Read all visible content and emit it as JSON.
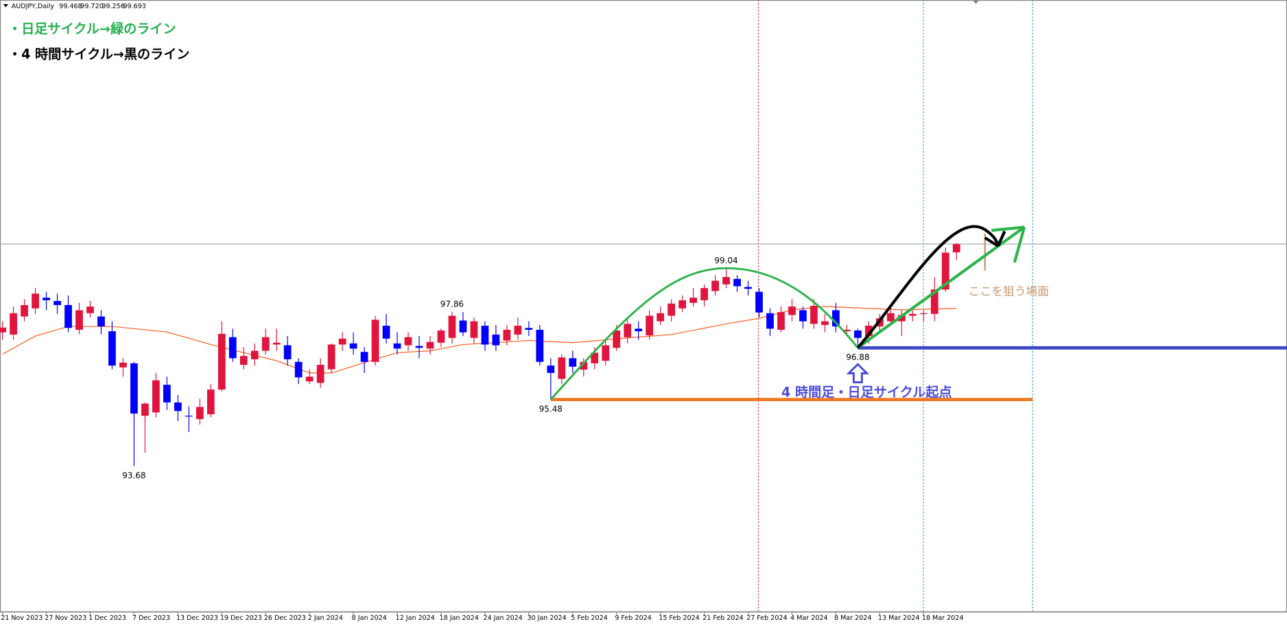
{
  "chart_data": {
    "type": "candlestick",
    "symbol": "AUDJPY,Daily",
    "quote": [
      99.468,
      {
        "value": 99.72,
        "label": "99.720"
      },
      99.256,
      99.693
    ],
    "notes": [
      "・日足サイクル→緑のライン",
      "・4 時間サイクル→黒のライン"
    ],
    "origin_text": "4 時間足・日足サイクル起点",
    "target_text": "ここを狙う場面",
    "price_labels": [
      93.68,
      95.48,
      97.86,
      99.04,
      96.88
    ],
    "bull_color": "#e0143c",
    "bear_color": "#0000ff",
    "ylim": [
      89.73,
      106.307
    ],
    "categories": [
      "21 Nov 2023",
      null,
      null,
      null,
      "27 Nov 2023",
      null,
      null,
      null,
      "1 Dec 2023",
      null,
      null,
      null,
      "7 Dec 2023",
      null,
      null,
      null,
      "13 Dec 2023",
      null,
      null,
      null,
      "19 Dec 2023",
      null,
      null,
      null,
      "26 Dec 2023",
      null,
      null,
      null,
      "2 Jan 2024",
      null,
      null,
      null,
      "8 Jan 2024",
      null,
      null,
      null,
      "12 Jan 2024",
      null,
      null,
      null,
      "18 Jan 2024",
      null,
      null,
      null,
      "24 Jan 2024",
      null,
      null,
      null,
      "30 Jan 2024",
      null,
      null,
      null,
      "5 Feb 2024",
      null,
      null,
      null,
      "9 Feb 2024",
      null,
      null,
      null,
      "15 Feb 2024",
      null,
      null,
      null,
      "21 Feb 2024",
      null,
      null,
      null,
      "27 Feb 2024",
      null,
      null,
      null,
      "4 Mar 2024",
      null,
      null,
      null,
      "8 Mar 2024",
      null,
      null,
      null,
      "13 Mar 2024",
      null,
      null,
      null,
      "18 Mar 2024",
      null,
      null,
      null
    ],
    "candles": [
      [
        97.3,
        97.6,
        97.1,
        97.43
      ],
      [
        97.24,
        98.0,
        97.1,
        97.82
      ],
      [
        97.73,
        98.2,
        97.6,
        98.04
      ],
      [
        97.95,
        98.5,
        97.8,
        98.35
      ],
      [
        98.24,
        98.4,
        97.9,
        98.17
      ],
      [
        98.15,
        98.35,
        97.8,
        98.04
      ],
      [
        98.04,
        98.3,
        97.3,
        97.42
      ],
      [
        97.37,
        98.1,
        97.25,
        97.9
      ],
      [
        97.82,
        98.15,
        97.7,
        98.0
      ],
      [
        97.73,
        97.9,
        97.25,
        97.46
      ],
      [
        97.33,
        97.6,
        96.3,
        96.4
      ],
      [
        96.35,
        96.6,
        96.1,
        96.48
      ],
      [
        96.46,
        96.5,
        93.68,
        95.1
      ],
      [
        95.04,
        95.4,
        94.04,
        95.37
      ],
      [
        95.13,
        96.2,
        95.0,
        96.0
      ],
      [
        95.88,
        96.1,
        95.2,
        95.4
      ],
      [
        95.4,
        95.6,
        94.9,
        95.17
      ],
      [
        95.04,
        95.3,
        94.6,
        95.02
      ],
      [
        94.95,
        95.5,
        94.8,
        95.28
      ],
      [
        95.08,
        95.9,
        95.0,
        95.75
      ],
      [
        95.75,
        97.6,
        95.7,
        97.26
      ],
      [
        97.17,
        97.4,
        96.5,
        96.6
      ],
      [
        96.42,
        96.9,
        96.3,
        96.66
      ],
      [
        96.57,
        97.0,
        96.4,
        96.8
      ],
      [
        96.8,
        97.4,
        96.7,
        97.17
      ],
      [
        96.97,
        97.4,
        96.8,
        97.02
      ],
      [
        96.95,
        97.2,
        96.4,
        96.57
      ],
      [
        96.5,
        96.6,
        95.9,
        96.08
      ],
      [
        95.97,
        96.3,
        95.9,
        96.1
      ],
      [
        95.93,
        96.6,
        95.8,
        96.42
      ],
      [
        96.3,
        97.0,
        96.2,
        96.97
      ],
      [
        96.97,
        97.3,
        96.8,
        97.13
      ],
      [
        97.0,
        97.3,
        96.7,
        96.86
      ],
      [
        96.77,
        96.9,
        96.2,
        96.5
      ],
      [
        96.5,
        97.75,
        96.4,
        97.64
      ],
      [
        97.48,
        97.8,
        97.0,
        97.13
      ],
      [
        97.0,
        97.3,
        96.7,
        96.86
      ],
      [
        96.95,
        97.3,
        96.8,
        97.17
      ],
      [
        96.93,
        97.2,
        96.6,
        96.88
      ],
      [
        96.86,
        97.2,
        96.7,
        97.04
      ],
      [
        97.02,
        97.4,
        96.9,
        97.35
      ],
      [
        97.15,
        97.86,
        97.0,
        97.75
      ],
      [
        97.62,
        97.85,
        97.2,
        97.3
      ],
      [
        97.15,
        97.7,
        97.0,
        97.6
      ],
      [
        97.48,
        97.6,
        96.8,
        96.97
      ],
      [
        97.24,
        97.5,
        96.8,
        96.95
      ],
      [
        97.08,
        97.5,
        96.95,
        97.37
      ],
      [
        97.24,
        97.7,
        97.1,
        97.48
      ],
      [
        97.42,
        97.6,
        97.2,
        97.37
      ],
      [
        97.37,
        97.5,
        96.4,
        96.5
      ],
      [
        96.4,
        96.6,
        95.48,
        96.2
      ],
      [
        96.04,
        96.7,
        95.9,
        96.62
      ],
      [
        96.6,
        96.8,
        96.2,
        96.37
      ],
      [
        96.29,
        96.6,
        96.1,
        96.5
      ],
      [
        96.46,
        96.9,
        96.3,
        96.75
      ],
      [
        96.53,
        97.1,
        96.4,
        96.95
      ],
      [
        96.88,
        97.5,
        96.8,
        97.35
      ],
      [
        97.17,
        97.7,
        97.0,
        97.53
      ],
      [
        97.4,
        97.6,
        97.1,
        97.33
      ],
      [
        97.22,
        97.9,
        97.1,
        97.75
      ],
      [
        97.6,
        98.0,
        97.5,
        97.82
      ],
      [
        97.75,
        98.2,
        97.6,
        98.08
      ],
      [
        97.95,
        98.3,
        97.85,
        98.17
      ],
      [
        98.1,
        98.5,
        98.0,
        98.24
      ],
      [
        98.17,
        98.6,
        98.0,
        98.5
      ],
      [
        98.42,
        98.85,
        98.3,
        98.7
      ],
      [
        98.6,
        99.04,
        98.5,
        98.8
      ],
      [
        98.75,
        98.85,
        98.4,
        98.55
      ],
      [
        98.53,
        98.7,
        98.3,
        98.48
      ],
      [
        98.4,
        98.5,
        97.7,
        97.84
      ],
      [
        97.82,
        97.95,
        97.2,
        97.4
      ],
      [
        97.37,
        98.0,
        97.3,
        97.85
      ],
      [
        97.77,
        98.2,
        97.6,
        98.0
      ],
      [
        97.9,
        98.0,
        97.4,
        97.6
      ],
      [
        97.53,
        98.2,
        97.4,
        98.02
      ],
      [
        97.5,
        97.8,
        97.3,
        97.6
      ],
      [
        97.9,
        98.1,
        97.3,
        97.46
      ],
      [
        97.33,
        97.5,
        97.2,
        97.37
      ],
      [
        97.35,
        97.4,
        96.88,
        97.15
      ],
      [
        97.2,
        97.6,
        97.0,
        97.48
      ],
      [
        97.46,
        97.8,
        97.3,
        97.68
      ],
      [
        97.6,
        98.0,
        97.5,
        97.82
      ],
      [
        97.6,
        97.9,
        97.2,
        97.77
      ],
      [
        97.75,
        97.9,
        97.6,
        97.8
      ],
      [
        97.8,
        97.9,
        97.6,
        97.82
      ],
      [
        97.8,
        98.8,
        97.6,
        98.46
      ],
      [
        98.46,
        99.6,
        98.4,
        99.46
      ],
      [
        99.468,
        99.72,
        99.256,
        99.693
      ]
    ],
    "ma": {
      "color": "#ff5a1e",
      "x": [
        0,
        3,
        6,
        10,
        15,
        19,
        22,
        25,
        28,
        30,
        33,
        36,
        39,
        42,
        45,
        48,
        52,
        57,
        61,
        66,
        69,
        72,
        75,
        79,
        82,
        87
      ],
      "values": [
        96.71,
        97.2,
        97.46,
        97.46,
        97.31,
        96.97,
        96.75,
        96.53,
        96.2,
        96.2,
        96.48,
        96.75,
        96.8,
        96.97,
        97.02,
        97.08,
        97.02,
        97.15,
        97.24,
        97.53,
        97.68,
        97.91,
        98.0,
        97.95,
        97.91,
        97.95
      ]
    }
  }
}
